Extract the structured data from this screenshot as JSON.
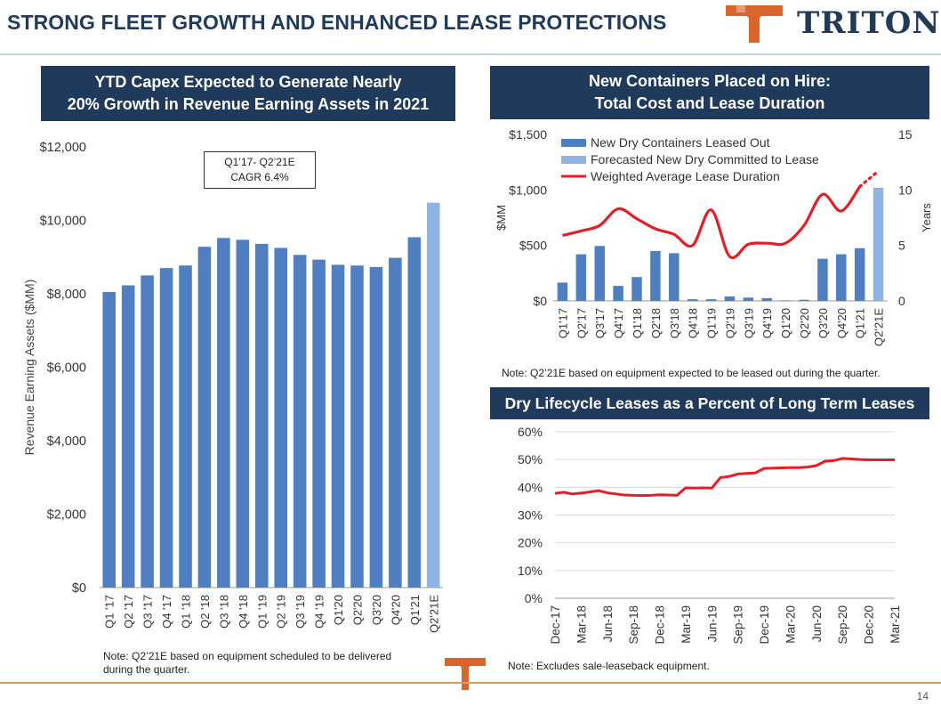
{
  "page": {
    "title": "STRONG FLEET GROWTH AND ENHANCED LEASE PROTECTIONS",
    "logo_text": "TRITON",
    "page_number": "14"
  },
  "colors": {
    "navy": "#1f3a5a",
    "bar_blue": "#4f7fc1",
    "bar_light": "#8fb4e3",
    "line_red": "#e11f26",
    "accent_orange": "#d8652b"
  },
  "left_panel": {
    "header_line1": "YTD Capex Expected to Generate Nearly",
    "header_line2": "20% Growth in Revenue Earning Assets in 2021",
    "annotation_line1": "Q1’17- Q2’21E",
    "annotation_line2": "CAGR 6.4%",
    "note_line1": "Note: Q2’21E based on equipment scheduled to be delivered",
    "note_line2": "during the quarter."
  },
  "top_right_panel": {
    "header_line1": "New Containers Placed on Hire:",
    "header_line2": "Total Cost and Lease Duration",
    "note": "Note: Q2’21E based on equipment expected to be leased out during the quarter."
  },
  "bottom_right_panel": {
    "header": "Dry Lifecycle Leases as a Percent of Long Term Leases",
    "note": "Note: Excludes sale-leaseback equipment."
  },
  "chart_data": [
    {
      "type": "bar",
      "title": "",
      "xlabel": "",
      "ylabel": "Revenue Earning Assets ($MM)",
      "ylim": [
        0,
        12000
      ],
      "yticks": [
        "$0",
        "$2,000",
        "$4,000",
        "$6,000",
        "$8,000",
        "$10,000",
        "$12,000"
      ],
      "ytick_values": [
        0,
        2000,
        4000,
        6000,
        8000,
        10000,
        12000
      ],
      "categories": [
        "Q1 '17",
        "Q2 '17",
        "Q3 '17",
        "Q4 '17",
        "Q1 '18",
        "Q2 '18",
        "Q3 '18",
        "Q4 '18",
        "Q1 '19",
        "Q2 '19",
        "Q3 '19",
        "Q4 '19",
        "Q1'20",
        "Q2'20",
        "Q3'20",
        "Q4'20",
        "Q1'21",
        "Q2'21E"
      ],
      "values": [
        8050,
        8230,
        8500,
        8700,
        8770,
        9280,
        9520,
        9470,
        9360,
        9250,
        9060,
        8930,
        8790,
        8770,
        8730,
        8980,
        9540,
        10480
      ],
      "forecast_index": 17,
      "grid": false
    },
    {
      "type": "bar",
      "title": "",
      "ylabel": "$MM",
      "y2label": "Years",
      "ylim": [
        0,
        1500
      ],
      "y2lim": [
        0,
        15
      ],
      "yticks": [
        "$0",
        "$500",
        "$1,000",
        "$1,500"
      ],
      "ytick_values": [
        0,
        500,
        1000,
        1500
      ],
      "y2ticks": [
        "0",
        "5",
        "10",
        "15"
      ],
      "y2tick_values": [
        0,
        5,
        10,
        15
      ],
      "categories": [
        "Q1'17",
        "Q2'17",
        "Q3'17",
        "Q4'17",
        "Q1'18",
        "Q2'18",
        "Q3'18",
        "Q4'18",
        "Q1'19",
        "Q2'19",
        "Q3'19",
        "Q4'19",
        "Q1'20",
        "Q2'20",
        "Q3'20",
        "Q4'20",
        "Q1'21",
        "Q2'21E"
      ],
      "series": [
        {
          "name": "New Dry Containers Leased Out",
          "kind": "bar",
          "values": [
            165,
            420,
            495,
            135,
            215,
            450,
            430,
            15,
            15,
            40,
            30,
            25,
            5,
            10,
            380,
            420,
            475,
            null
          ]
        },
        {
          "name": "Forecasted New Dry Committed to Lease",
          "kind": "bar",
          "values": [
            null,
            null,
            null,
            null,
            null,
            null,
            null,
            null,
            null,
            null,
            null,
            null,
            null,
            null,
            null,
            null,
            null,
            1020
          ]
        },
        {
          "name": "Weighted Average Lease Duration",
          "kind": "line",
          "axis": "right",
          "values": [
            5.9,
            6.3,
            6.8,
            8.3,
            7.4,
            6.5,
            6.0,
            5.0,
            8.2,
            4.0,
            5.1,
            5.2,
            5.2,
            6.8,
            9.6,
            8.1,
            10.3,
            11.7
          ]
        }
      ],
      "legend": "top-left",
      "grid": false
    },
    {
      "type": "line",
      "title": "",
      "ylim": [
        0,
        60
      ],
      "yticks": [
        "0%",
        "10%",
        "20%",
        "30%",
        "40%",
        "50%",
        "60%"
      ],
      "ytick_values": [
        0,
        10,
        20,
        30,
        40,
        50,
        60
      ],
      "xticks": [
        "Dec-17",
        "Mar-18",
        "Jun-18",
        "Sep-18",
        "Dec-18",
        "Mar-19",
        "Jun-19",
        "Sep-19",
        "Dec-19",
        "Mar-20",
        "Jun-20",
        "Sep-20",
        "Dec-20",
        "Mar-21"
      ],
      "x": [
        "Dec-17",
        "Jan-18",
        "Feb-18",
        "Mar-18",
        "Apr-18",
        "May-18",
        "Jun-18",
        "Jul-18",
        "Aug-18",
        "Sep-18",
        "Oct-18",
        "Nov-18",
        "Dec-18",
        "Jan-19",
        "Feb-19",
        "Mar-19",
        "Apr-19",
        "May-19",
        "Jun-19",
        "Jul-19",
        "Aug-19",
        "Sep-19",
        "Oct-19",
        "Nov-19",
        "Dec-19",
        "Jan-20",
        "Feb-20",
        "Mar-20",
        "Apr-20",
        "May-20",
        "Jun-20",
        "Jul-20",
        "Aug-20",
        "Sep-20",
        "Oct-20",
        "Nov-20",
        "Dec-20",
        "Jan-21",
        "Feb-21",
        "Mar-21"
      ],
      "series": [
        {
          "name": "",
          "values": [
            37.8,
            38.2,
            37.6,
            37.9,
            38.3,
            38.8,
            38.0,
            37.6,
            37.2,
            37.1,
            37.0,
            37.1,
            37.3,
            37.2,
            37.1,
            39.8,
            39.7,
            39.8,
            39.7,
            43.5,
            43.9,
            44.8,
            45.0,
            45.2,
            46.8,
            46.9,
            47.0,
            47.1,
            47.1,
            47.3,
            47.8,
            49.4,
            49.6,
            50.4,
            50.2,
            50.0,
            49.9,
            49.9,
            49.9,
            49.9
          ]
        }
      ],
      "grid": true
    }
  ]
}
